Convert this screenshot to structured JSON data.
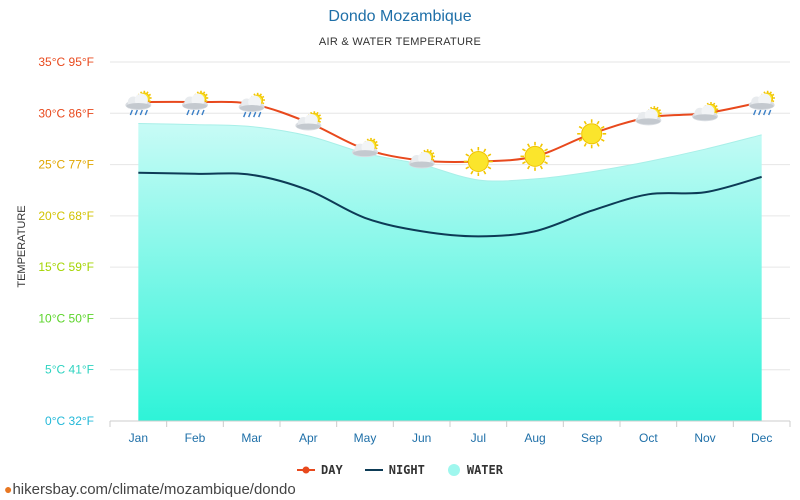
{
  "title": "Dondo Mozambique",
  "subtitle": "AIR & WATER TEMPERATURE",
  "source": "hikersbay.com/climate/mozambique/dondo",
  "colors": {
    "day": "#e8491d",
    "night": "#0d3b56",
    "water_top": "#c8fbf6",
    "water_bottom": "#2ef3d8",
    "title": "#1e6fa8"
  },
  "chart_data": {
    "type": "line",
    "ylabel": "TEMPERATURE",
    "categories": [
      "Jan",
      "Feb",
      "Mar",
      "Apr",
      "May",
      "Jun",
      "Jul",
      "Aug",
      "Sep",
      "Oct",
      "Nov",
      "Dec"
    ],
    "y_ticks": [
      {
        "value": 35,
        "label": "35°C 95°F",
        "color": "#e8491d"
      },
      {
        "value": 30,
        "label": "30°C 86°F",
        "color": "#e8491d"
      },
      {
        "value": 25,
        "label": "25°C 77°F",
        "color": "#e0a600"
      },
      {
        "value": 20,
        "label": "20°C 68°F",
        "color": "#d1c200"
      },
      {
        "value": 15,
        "label": "15°C 59°F",
        "color": "#a3d400"
      },
      {
        "value": 10,
        "label": "10°C 50°F",
        "color": "#5bd42a"
      },
      {
        "value": 5,
        "label": "5°C 41°F",
        "color": "#2ed3c0"
      },
      {
        "value": 0,
        "label": "0°C 32°F",
        "color": "#22b8d8"
      }
    ],
    "ylim": [
      0,
      35
    ],
    "series": [
      {
        "name": "DAY",
        "values": [
          31.1,
          31.1,
          30.9,
          29.1,
          26.5,
          25.4,
          25.3,
          25.8,
          28.0,
          29.6,
          30.0,
          31.1
        ]
      },
      {
        "name": "NIGHT",
        "values": [
          24.2,
          24.1,
          24.0,
          22.5,
          19.8,
          18.5,
          18.0,
          18.5,
          20.5,
          22.1,
          22.3,
          23.8
        ]
      },
      {
        "name": "WATER",
        "values": [
          29.0,
          28.9,
          28.7,
          27.8,
          26.1,
          25.0,
          23.5,
          23.6,
          24.3,
          25.3,
          26.5,
          27.9
        ]
      }
    ],
    "weather_icons": [
      "cloud-rain-sun",
      "cloud-rain-sun",
      "cloud-rain-sun",
      "cloud-sun",
      "cloud-sun",
      "cloud-sun",
      "sun",
      "sun",
      "sun",
      "cloud-sun",
      "cloud-sun",
      "cloud-rain-sun"
    ],
    "legend_placement": "bottom-center",
    "grid": true
  }
}
